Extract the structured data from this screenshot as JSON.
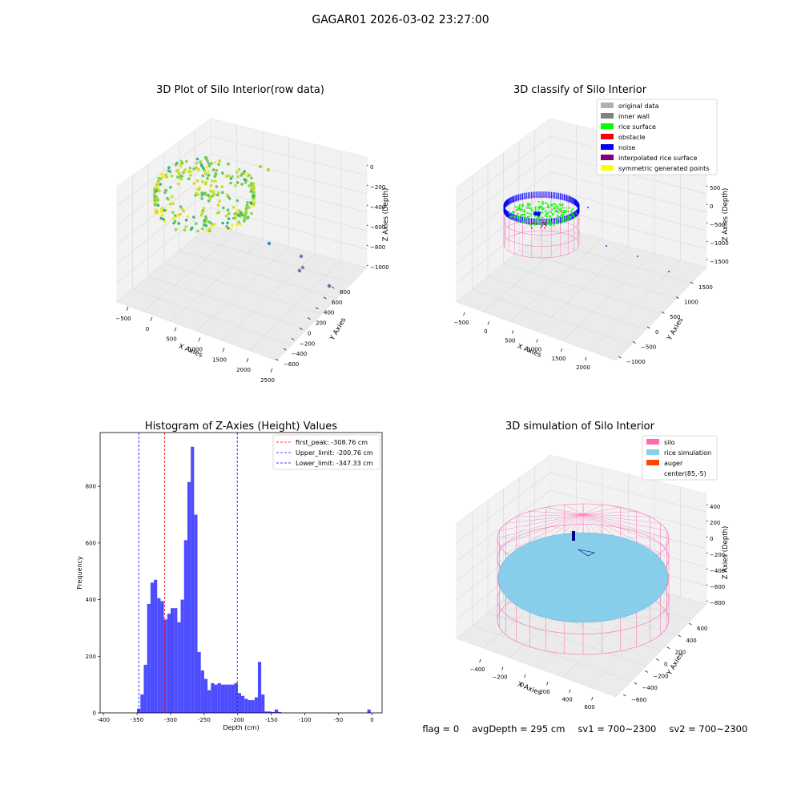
{
  "suptitle": "GAGAR01 2026-03-02 23:27:00",
  "status": {
    "flag": "flag = 0",
    "avg_depth": "avgDepth = 295 cm",
    "sv1": "sv1 = 700~2300",
    "sv2": "sv2 = 700~2300"
  },
  "colors": {
    "histogram_bar": "#4d4dff",
    "first_peak_line": "#ff0000",
    "limit_line": "#0000ff",
    "silo_mesh": "#ff69b4",
    "rice_simulation": "#87ceeb",
    "auger": "#ff4500",
    "original_data": "#b0b0b0",
    "inner_wall": "#808080",
    "rice_surface": "#00ff00",
    "obstacle": "#ff0000",
    "noise": "#0000ff",
    "interpolated_rice_surface": "#800080",
    "symmetric_generated_points": "#ffff00"
  },
  "chart_data": [
    {
      "type": "scatter",
      "title": "3D Plot of Silo Interior(row data)",
      "xlabel": "X Axies",
      "ylabel": "Y Axies",
      "zlabel": "Z Axies (Depth)",
      "x_ticks": [
        "−500",
        "0",
        "500",
        "1000",
        "1500",
        "2000",
        "2500"
      ],
      "y_ticks": [
        "−600",
        "−400",
        "−200",
        "0",
        "200",
        "400",
        "600",
        "800"
      ],
      "z_ticks": [
        "0",
        "−200",
        "−400",
        "−600",
        "−800",
        "−1000"
      ],
      "xlim": [
        -600,
        2500
      ],
      "ylim": [
        -650,
        850
      ],
      "zlim": [
        -1100,
        0
      ],
      "colormap": "viridis"
    },
    {
      "type": "scatter",
      "title": "3D classify of Silo Interior",
      "xlabel": "X Axies",
      "ylabel": "Y Axies",
      "zlabel": "Z Axies (Depth)",
      "x_ticks": [
        "−500",
        "0",
        "500",
        "1000",
        "1500",
        "2000"
      ],
      "y_ticks": [
        "−1000",
        "−500",
        "0",
        "500",
        "1000",
        "1500"
      ],
      "z_ticks": [
        "500",
        "0",
        "−500",
        "−1000",
        "−1500"
      ],
      "legend": [
        {
          "label": "original data",
          "color": "#b0b0b0"
        },
        {
          "label": "inner wall",
          "color": "#808080"
        },
        {
          "label": "rice surface",
          "color": "#00ff00"
        },
        {
          "label": "obstacle",
          "color": "#ff0000"
        },
        {
          "label": "noise",
          "color": "#0000ff"
        },
        {
          "label": "interpolated rice surface",
          "color": "#800080"
        },
        {
          "label": "symmetric generated points",
          "color": "#ffff00"
        }
      ],
      "legend_position": "top-right"
    },
    {
      "type": "bar",
      "title": "Histogram of Z-Axies (Height) Values",
      "xlabel": "Depth (cm)",
      "ylabel": "Frequency",
      "xlim": [
        -405,
        15
      ],
      "ylim": [
        0,
        990
      ],
      "x_ticks": [
        -400,
        -350,
        -300,
        -250,
        -200,
        -150,
        -100,
        -50,
        0
      ],
      "y_ticks": [
        0,
        200,
        400,
        600,
        800
      ],
      "bin_width": 5,
      "bins": [
        [
          -350,
          15
        ],
        [
          -345,
          65
        ],
        [
          -340,
          170
        ],
        [
          -335,
          385
        ],
        [
          -330,
          460
        ],
        [
          -325,
          470
        ],
        [
          -320,
          405
        ],
        [
          -315,
          395
        ],
        [
          -310,
          330
        ],
        [
          -305,
          350
        ],
        [
          -300,
          370
        ],
        [
          -295,
          370
        ],
        [
          -290,
          320
        ],
        [
          -285,
          400
        ],
        [
          -280,
          610
        ],
        [
          -275,
          815
        ],
        [
          -270,
          940
        ],
        [
          -265,
          700
        ],
        [
          -260,
          215
        ],
        [
          -255,
          150
        ],
        [
          -250,
          120
        ],
        [
          -245,
          80
        ],
        [
          -240,
          105
        ],
        [
          -235,
          100
        ],
        [
          -230,
          105
        ],
        [
          -225,
          100
        ],
        [
          -220,
          100
        ],
        [
          -215,
          100
        ],
        [
          -210,
          100
        ],
        [
          -205,
          105
        ],
        [
          -200,
          70
        ],
        [
          -195,
          60
        ],
        [
          -190,
          50
        ],
        [
          -185,
          45
        ],
        [
          -180,
          45
        ],
        [
          -175,
          55
        ],
        [
          -170,
          180
        ],
        [
          -165,
          65
        ],
        [
          -160,
          5
        ],
        [
          -155,
          5
        ],
        [
          -150,
          3
        ],
        [
          -145,
          12
        ],
        [
          -140,
          3
        ]
      ],
      "vlines": [
        {
          "x": -308.76,
          "label": "first_peak: -308.76 cm",
          "color": "#ff0000"
        },
        {
          "x": -200.76,
          "label": "Upper_limit: -200.76 cm",
          "color": "#0000ff"
        },
        {
          "x": -347.33,
          "label": "Lower_limit: -347.33 cm",
          "color": "#0000ff"
        }
      ],
      "legend_position": "top-right",
      "grid": false
    },
    {
      "type": "scatter",
      "title": "3D simulation of Silo Interior",
      "xlabel": "X Axies",
      "ylabel": "Y Axies",
      "zlabel": "Z Axies (Depth)",
      "x_ticks": [
        "−400",
        "−200",
        "0",
        "200",
        "400",
        "600"
      ],
      "y_ticks": [
        "−600",
        "−400",
        "−200",
        "0",
        "200",
        "400",
        "600"
      ],
      "z_ticks": [
        "400",
        "200",
        "0",
        "−200",
        "−400",
        "−600",
        "−800"
      ],
      "legend": [
        {
          "label": "silo",
          "color": "#ff69b4"
        },
        {
          "label": "rice simulation",
          "color": "#87ceeb"
        },
        {
          "label": "auger",
          "color": "#ff4500"
        },
        {
          "label": "center(85,-5)",
          "color": ""
        }
      ],
      "legend_position": "top-right"
    }
  ]
}
